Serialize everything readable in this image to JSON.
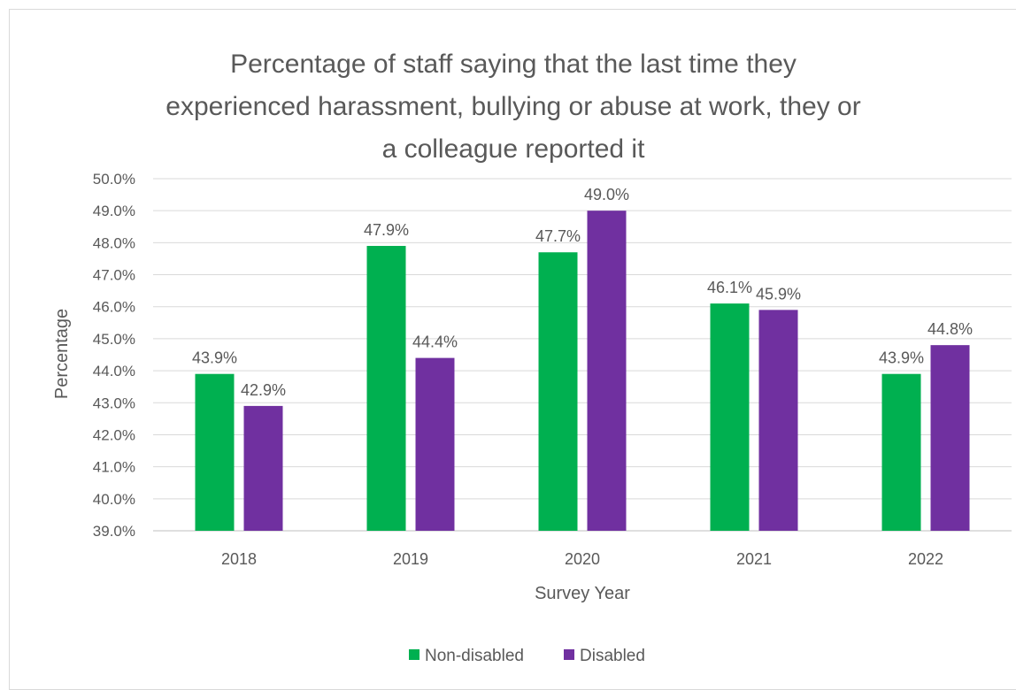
{
  "chart_data": {
    "type": "bar",
    "title": "Percentage of staff saying that the last time they experienced harassment, bullying or abuse at work, they or a colleague reported it",
    "title_lines": [
      "Percentage of staff saying that the last time they",
      "experienced harassment, bullying or abuse at work, they or",
      "a colleague reported it"
    ],
    "xlabel": "Survey Year",
    "ylabel": "Percentage",
    "categories": [
      "2018",
      "2019",
      "2020",
      "2021",
      "2022"
    ],
    "series": [
      {
        "name": "Non-disabled",
        "color": "#00b050",
        "values": [
          43.9,
          47.9,
          47.7,
          46.1,
          43.9
        ],
        "labels": [
          "43.9%",
          "47.9%",
          "47.7%",
          "46.1%",
          "43.9%"
        ]
      },
      {
        "name": "Disabled",
        "color": "#7030a0",
        "values": [
          42.9,
          44.4,
          49.0,
          45.9,
          44.8
        ],
        "labels": [
          "42.9%",
          "44.4%",
          "49.0%",
          "45.9%",
          "44.8%"
        ]
      }
    ],
    "ylim": [
      39.0,
      50.0
    ],
    "yticks": [
      "39.0%",
      "40.0%",
      "41.0%",
      "42.0%",
      "43.0%",
      "44.0%",
      "45.0%",
      "46.0%",
      "47.0%",
      "48.0%",
      "49.0%",
      "50.0%"
    ],
    "grid": true,
    "legend_position": "bottom"
  }
}
